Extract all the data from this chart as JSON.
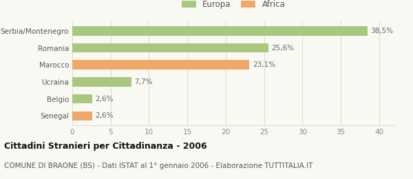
{
  "categories": [
    "Serbia/Montenegro",
    "Romania",
    "Marocco",
    "Ucraina",
    "Belgio",
    "Senegal"
  ],
  "values": [
    38.5,
    25.6,
    23.1,
    7.7,
    2.6,
    2.6
  ],
  "labels": [
    "38,5%",
    "25,6%",
    "23,1%",
    "7,7%",
    "2,6%",
    "2,6%"
  ],
  "colors": [
    "#a8c880",
    "#a8c880",
    "#f0a868",
    "#a8c880",
    "#a8c880",
    "#f0a868"
  ],
  "legend_items": [
    {
      "label": "Europa",
      "color": "#a8c880"
    },
    {
      "label": "Africa",
      "color": "#f0a868"
    }
  ],
  "xlim": [
    0,
    42
  ],
  "xticks": [
    0,
    5,
    10,
    15,
    20,
    25,
    30,
    35,
    40
  ],
  "title": "Cittadini Stranieri per Cittadinanza - 2006",
  "subtitle": "COMUNE DI BRAONE (BS) - Dati ISTAT al 1° gennaio 2006 - Elaborazione TUTTITALIA.IT",
  "background_color": "#f9f9f4",
  "grid_color": "#ddddcc",
  "title_fontsize": 9,
  "subtitle_fontsize": 7.5,
  "label_fontsize": 7.5,
  "tick_fontsize": 7.5,
  "category_fontsize": 7.5,
  "legend_fontsize": 8.5
}
